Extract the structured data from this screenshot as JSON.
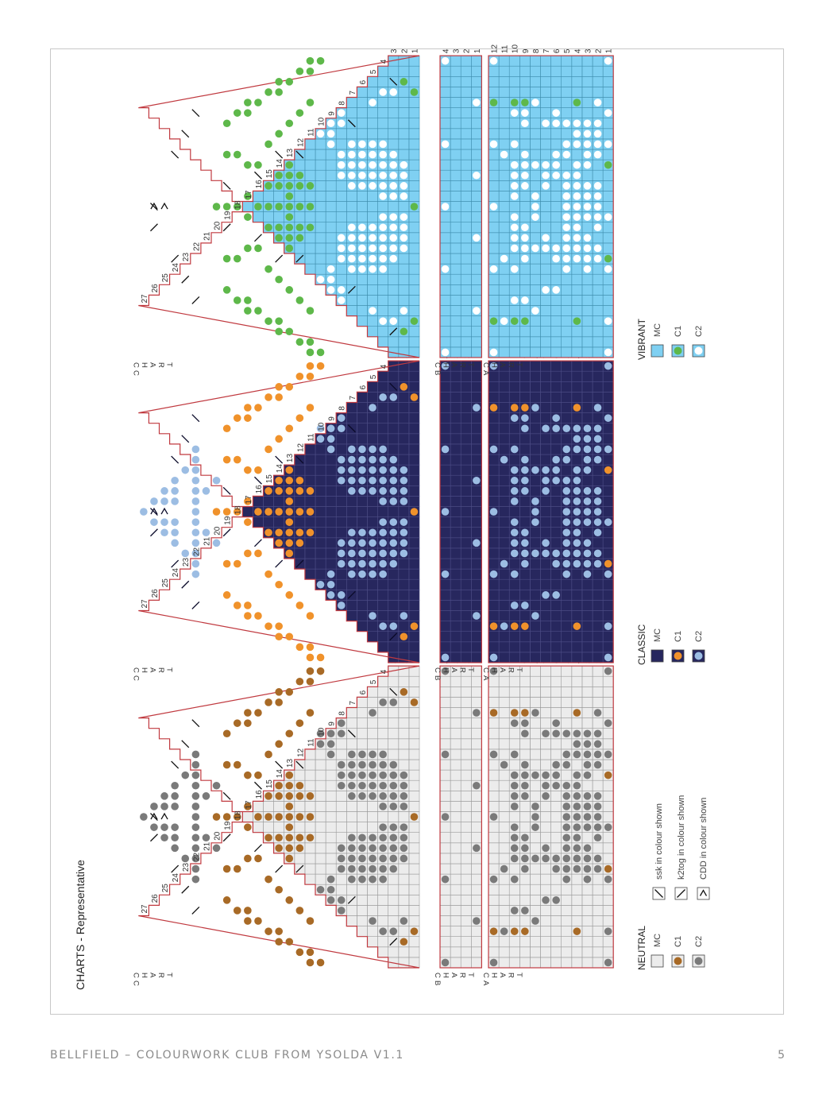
{
  "page_title": "CHARTS - Representative",
  "footer": {
    "title": "BELLFIELD – COLOURWORK CLUB FROM YSOLDA V1.1",
    "page": "5"
  },
  "chart_labels": {
    "a": "CHART A",
    "b": "CHART B",
    "c": "CHART C"
  },
  "colorways": [
    {
      "name": "NEUTRAL",
      "colors": {
        "mc": "#ececec",
        "grid": "#9a9a9a",
        "c1": "#a86a26",
        "c2": "#7a7a7a",
        "border": "#c0393f"
      },
      "legend": [
        {
          "key": "mc",
          "label": "MC"
        },
        {
          "key": "c1",
          "label": "C1"
        },
        {
          "key": "c2",
          "label": "C2"
        }
      ]
    },
    {
      "name": "CLASSIC",
      "colors": {
        "mc": "#27275e",
        "grid": "#4d4d86",
        "c1": "#f0922b",
        "c2": "#9cbde3",
        "border": "#c0393f"
      },
      "legend": [
        {
          "key": "mc",
          "label": "MC"
        },
        {
          "key": "c1",
          "label": "C1"
        },
        {
          "key": "c2",
          "label": "C2"
        }
      ]
    },
    {
      "name": "VIBRANT",
      "colors": {
        "mc": "#7fd0f2",
        "grid": "#3f8eae",
        "c1": "#5eb84a",
        "c2": "#ffffff",
        "border": "#c0393f"
      },
      "legend": [
        {
          "key": "mc",
          "label": "MC"
        },
        {
          "key": "c1",
          "label": "C1"
        },
        {
          "key": "c2",
          "label": "C2"
        }
      ]
    }
  ],
  "stitch_key": [
    {
      "symbol": "ssk",
      "label": "ssk in colour shown"
    },
    {
      "symbol": "k2tog",
      "label": "k2tog in colour shown"
    },
    {
      "symbol": "cdd",
      "label": "CDD in colour shown"
    }
  ],
  "charts": {
    "a": {
      "rows": 12,
      "cols": 29,
      "c1": [
        [
          12,
          4
        ],
        [
          12,
          25
        ],
        [
          10,
          4
        ],
        [
          10,
          25
        ],
        [
          9,
          4
        ],
        [
          9,
          25
        ],
        [
          4,
          4
        ],
        [
          4,
          25
        ],
        [
          1,
          10
        ],
        [
          1,
          19
        ]
      ],
      "c2": [
        [
          12,
          1
        ],
        [
          12,
          9
        ],
        [
          12,
          15
        ],
        [
          12,
          21
        ],
        [
          12,
          29
        ],
        [
          11,
          4
        ],
        [
          11,
          10
        ],
        [
          11,
          20
        ],
        [
          10,
          6
        ],
        [
          10,
          9
        ],
        [
          10,
          11
        ],
        [
          10,
          12
        ],
        [
          10,
          13
        ],
        [
          10,
          14
        ],
        [
          10,
          16
        ],
        [
          10,
          17
        ],
        [
          10,
          18
        ],
        [
          10,
          19
        ],
        [
          10,
          21
        ],
        [
          10,
          24
        ],
        [
          9,
          6
        ],
        [
          9,
          10
        ],
        [
          9,
          11
        ],
        [
          9,
          12
        ],
        [
          9,
          13
        ],
        [
          9,
          17
        ],
        [
          9,
          18
        ],
        [
          9,
          19
        ],
        [
          9,
          20
        ],
        [
          9,
          23
        ],
        [
          9,
          24
        ],
        [
          8,
          5
        ],
        [
          8,
          11
        ],
        [
          8,
          14
        ],
        [
          8,
          15
        ],
        [
          8,
          16
        ],
        [
          8,
          19
        ],
        [
          8,
          25
        ],
        [
          7,
          7
        ],
        [
          7,
          11
        ],
        [
          7,
          12
        ],
        [
          7,
          17
        ],
        [
          7,
          18
        ],
        [
          7,
          19
        ],
        [
          7,
          23
        ],
        [
          6,
          7
        ],
        [
          6,
          10
        ],
        [
          6,
          11
        ],
        [
          6,
          18
        ],
        [
          6,
          19
        ],
        [
          6,
          20
        ],
        [
          6,
          23
        ],
        [
          6,
          24
        ],
        [
          5,
          9
        ],
        [
          5,
          10
        ],
        [
          5,
          11
        ],
        [
          5,
          12
        ],
        [
          5,
          13
        ],
        [
          5,
          14
        ],
        [
          5,
          15
        ],
        [
          5,
          16
        ],
        [
          5,
          17
        ],
        [
          5,
          18
        ],
        [
          5,
          20
        ],
        [
          5,
          21
        ],
        [
          5,
          23
        ],
        [
          4,
          10
        ],
        [
          4,
          11
        ],
        [
          4,
          12
        ],
        [
          4,
          13
        ],
        [
          4,
          14
        ],
        [
          4,
          15
        ],
        [
          4,
          16
        ],
        [
          4,
          17
        ],
        [
          4,
          18
        ],
        [
          4,
          19
        ],
        [
          4,
          21
        ],
        [
          4,
          22
        ],
        [
          4,
          23
        ],
        [
          3,
          9
        ],
        [
          3,
          10
        ],
        [
          3,
          11
        ],
        [
          3,
          12
        ],
        [
          3,
          14
        ],
        [
          3,
          15
        ],
        [
          3,
          16
        ],
        [
          3,
          17
        ],
        [
          3,
          19
        ],
        [
          3,
          20
        ],
        [
          3,
          21
        ],
        [
          3,
          22
        ],
        [
          3,
          23
        ],
        [
          2,
          10
        ],
        [
          2,
          11
        ],
        [
          2,
          13
        ],
        [
          2,
          14
        ],
        [
          2,
          15
        ],
        [
          2,
          16
        ],
        [
          2,
          17
        ],
        [
          2,
          20
        ],
        [
          2,
          21
        ],
        [
          2,
          22
        ],
        [
          2,
          23
        ],
        [
          2,
          25
        ],
        [
          1,
          1
        ],
        [
          1,
          4
        ],
        [
          1,
          9
        ],
        [
          1,
          14
        ],
        [
          1,
          21
        ],
        [
          1,
          24
        ],
        [
          1,
          29
        ]
      ]
    },
    "b": {
      "rows": 4,
      "cols": 29,
      "c1": [],
      "c2": [
        [
          4,
          1
        ],
        [
          4,
          9
        ],
        [
          4,
          15
        ],
        [
          4,
          21
        ],
        [
          4,
          29
        ],
        [
          1,
          5
        ],
        [
          1,
          12
        ],
        [
          1,
          18
        ],
        [
          1,
          25
        ]
      ]
    },
    "c": {
      "rows": 27,
      "cols": 29,
      "c1": [
        [
          1,
          4
        ],
        [
          1,
          15
        ],
        [
          1,
          26
        ],
        [
          2,
          3
        ],
        [
          2,
          27
        ],
        [
          10,
          1
        ],
        [
          10,
          29
        ],
        [
          11,
          1
        ],
        [
          11,
          2
        ],
        [
          11,
          28
        ],
        [
          11,
          29
        ],
        [
          12,
          2
        ],
        [
          12,
          28
        ],
        [
          13,
          3
        ],
        [
          13,
          27
        ],
        [
          14,
          3
        ],
        [
          14,
          4
        ],
        [
          14,
          26
        ],
        [
          14,
          27
        ],
        [
          15,
          4
        ],
        [
          15,
          26
        ],
        [
          16,
          5
        ],
        [
          16,
          25
        ],
        [
          17,
          5
        ],
        [
          17,
          6
        ],
        [
          17,
          24
        ],
        [
          17,
          25
        ],
        [
          18,
          6
        ],
        [
          18,
          24
        ],
        [
          19,
          7
        ],
        [
          19,
          23
        ],
        [
          11,
          5
        ],
        [
          11,
          25
        ],
        [
          12,
          6
        ],
        [
          12,
          24
        ],
        [
          13,
          7
        ],
        [
          13,
          23
        ],
        [
          14,
          8
        ],
        [
          14,
          22
        ],
        [
          15,
          9
        ],
        [
          15,
          21
        ],
        [
          13,
          11
        ],
        [
          13,
          12
        ],
        [
          13,
          13
        ],
        [
          13,
          14
        ],
        [
          13,
          15
        ],
        [
          13,
          16
        ],
        [
          13,
          17
        ],
        [
          13,
          18
        ],
        [
          13,
          19
        ],
        [
          12,
          12
        ],
        [
          12,
          13
        ],
        [
          12,
          15
        ],
        [
          12,
          17
        ],
        [
          12,
          18
        ],
        [
          14,
          12
        ],
        [
          14,
          13
        ],
        [
          14,
          15
        ],
        [
          14,
          17
        ],
        [
          14,
          18
        ],
        [
          15,
          13
        ],
        [
          15,
          15
        ],
        [
          15,
          17
        ],
        [
          11,
          13
        ],
        [
          11,
          15
        ],
        [
          11,
          17
        ],
        [
          16,
          15
        ],
        [
          17,
          14
        ],
        [
          17,
          16
        ],
        [
          18,
          15
        ],
        [
          19,
          15
        ],
        [
          20,
          15
        ],
        [
          16,
          11
        ],
        [
          16,
          19
        ],
        [
          17,
          11
        ],
        [
          17,
          19
        ],
        [
          18,
          10
        ],
        [
          18,
          20
        ],
        [
          19,
          10
        ],
        [
          19,
          20
        ]
      ],
      "c2": [
        [
          2,
          5
        ],
        [
          2,
          11
        ],
        [
          2,
          12
        ],
        [
          2,
          13
        ],
        [
          2,
          14
        ],
        [
          2,
          16
        ],
        [
          2,
          17
        ],
        [
          2,
          18
        ],
        [
          2,
          19
        ],
        [
          3,
          4
        ],
        [
          3,
          10
        ],
        [
          3,
          11
        ],
        [
          3,
          12
        ],
        [
          3,
          13
        ],
        [
          3,
          14
        ],
        [
          3,
          16
        ],
        [
          3,
          17
        ],
        [
          3,
          18
        ],
        [
          3,
          19
        ],
        [
          3,
          20
        ],
        [
          3,
          26
        ],
        [
          4,
          4
        ],
        [
          4,
          9
        ],
        [
          4,
          10
        ],
        [
          4,
          11
        ],
        [
          4,
          12
        ],
        [
          4,
          13
        ],
        [
          4,
          14
        ],
        [
          4,
          16
        ],
        [
          4,
          17
        ],
        [
          4,
          18
        ],
        [
          4,
          19
        ],
        [
          4,
          20
        ],
        [
          4,
          21
        ],
        [
          4,
          26
        ],
        [
          5,
          5
        ],
        [
          5,
          9
        ],
        [
          5,
          10
        ],
        [
          5,
          11
        ],
        [
          5,
          12
        ],
        [
          5,
          13
        ],
        [
          5,
          17
        ],
        [
          5,
          18
        ],
        [
          5,
          19
        ],
        [
          5,
          20
        ],
        [
          5,
          21
        ],
        [
          5,
          25
        ],
        [
          6,
          9
        ],
        [
          6,
          10
        ],
        [
          6,
          11
        ],
        [
          6,
          12
        ],
        [
          6,
          13
        ],
        [
          6,
          17
        ],
        [
          6,
          18
        ],
        [
          6,
          19
        ],
        [
          6,
          20
        ],
        [
          6,
          21
        ],
        [
          7,
          9
        ],
        [
          7,
          10
        ],
        [
          7,
          11
        ],
        [
          7,
          12
        ],
        [
          7,
          13
        ],
        [
          7,
          17
        ],
        [
          7,
          18
        ],
        [
          7,
          19
        ],
        [
          7,
          20
        ],
        [
          7,
          21
        ],
        [
          8,
          6
        ],
        [
          8,
          7
        ],
        [
          8,
          10
        ],
        [
          8,
          11
        ],
        [
          8,
          12
        ],
        [
          8,
          18
        ],
        [
          8,
          19
        ],
        [
          8,
          20
        ],
        [
          8,
          23
        ],
        [
          8,
          24
        ],
        [
          9,
          7
        ],
        [
          9,
          8
        ],
        [
          9,
          9
        ],
        [
          9,
          21
        ],
        [
          9,
          22
        ],
        [
          9,
          23
        ],
        [
          10,
          8
        ],
        [
          10,
          22
        ],
        [
          10,
          23
        ],
        [
          22,
          9
        ],
        [
          22,
          10
        ],
        [
          22,
          11
        ],
        [
          22,
          12
        ],
        [
          22,
          13
        ],
        [
          22,
          14
        ],
        [
          22,
          15
        ],
        [
          22,
          16
        ],
        [
          22,
          17
        ],
        [
          22,
          18
        ],
        [
          22,
          19
        ],
        [
          22,
          20
        ],
        [
          22,
          21
        ],
        [
          23,
          11
        ],
        [
          23,
          19
        ],
        [
          24,
          12
        ],
        [
          24,
          13
        ],
        [
          24,
          14
        ],
        [
          24,
          16
        ],
        [
          24,
          17
        ],
        [
          24,
          18
        ],
        [
          25,
          13
        ],
        [
          25,
          14
        ],
        [
          25,
          16
        ],
        [
          25,
          17
        ],
        [
          26,
          14
        ],
        [
          26,
          16
        ],
        [
          27,
          15
        ],
        [
          20,
          12
        ],
        [
          20,
          18
        ],
        [
          21,
          13
        ],
        [
          21,
          17
        ]
      ],
      "ssk": [
        [
          3,
          27
        ],
        [
          7,
          23
        ],
        [
          12,
          20
        ],
        [
          14,
          20
        ],
        [
          16,
          18
        ],
        [
          19,
          17
        ],
        [
          22,
          24
        ],
        [
          23,
          22
        ],
        [
          24,
          20
        ],
        [
          26,
          15
        ]
      ],
      "k2tog": [
        [
          3,
          3
        ],
        [
          7,
          7
        ],
        [
          12,
          10
        ],
        [
          14,
          10
        ],
        [
          16,
          12
        ],
        [
          19,
          13
        ],
        [
          22,
          6
        ],
        [
          23,
          8
        ],
        [
          24,
          10
        ],
        [
          26,
          13
        ]
      ],
      "cdd": [
        [
          25,
          15
        ],
        [
          26,
          15
        ]
      ]
    }
  }
}
